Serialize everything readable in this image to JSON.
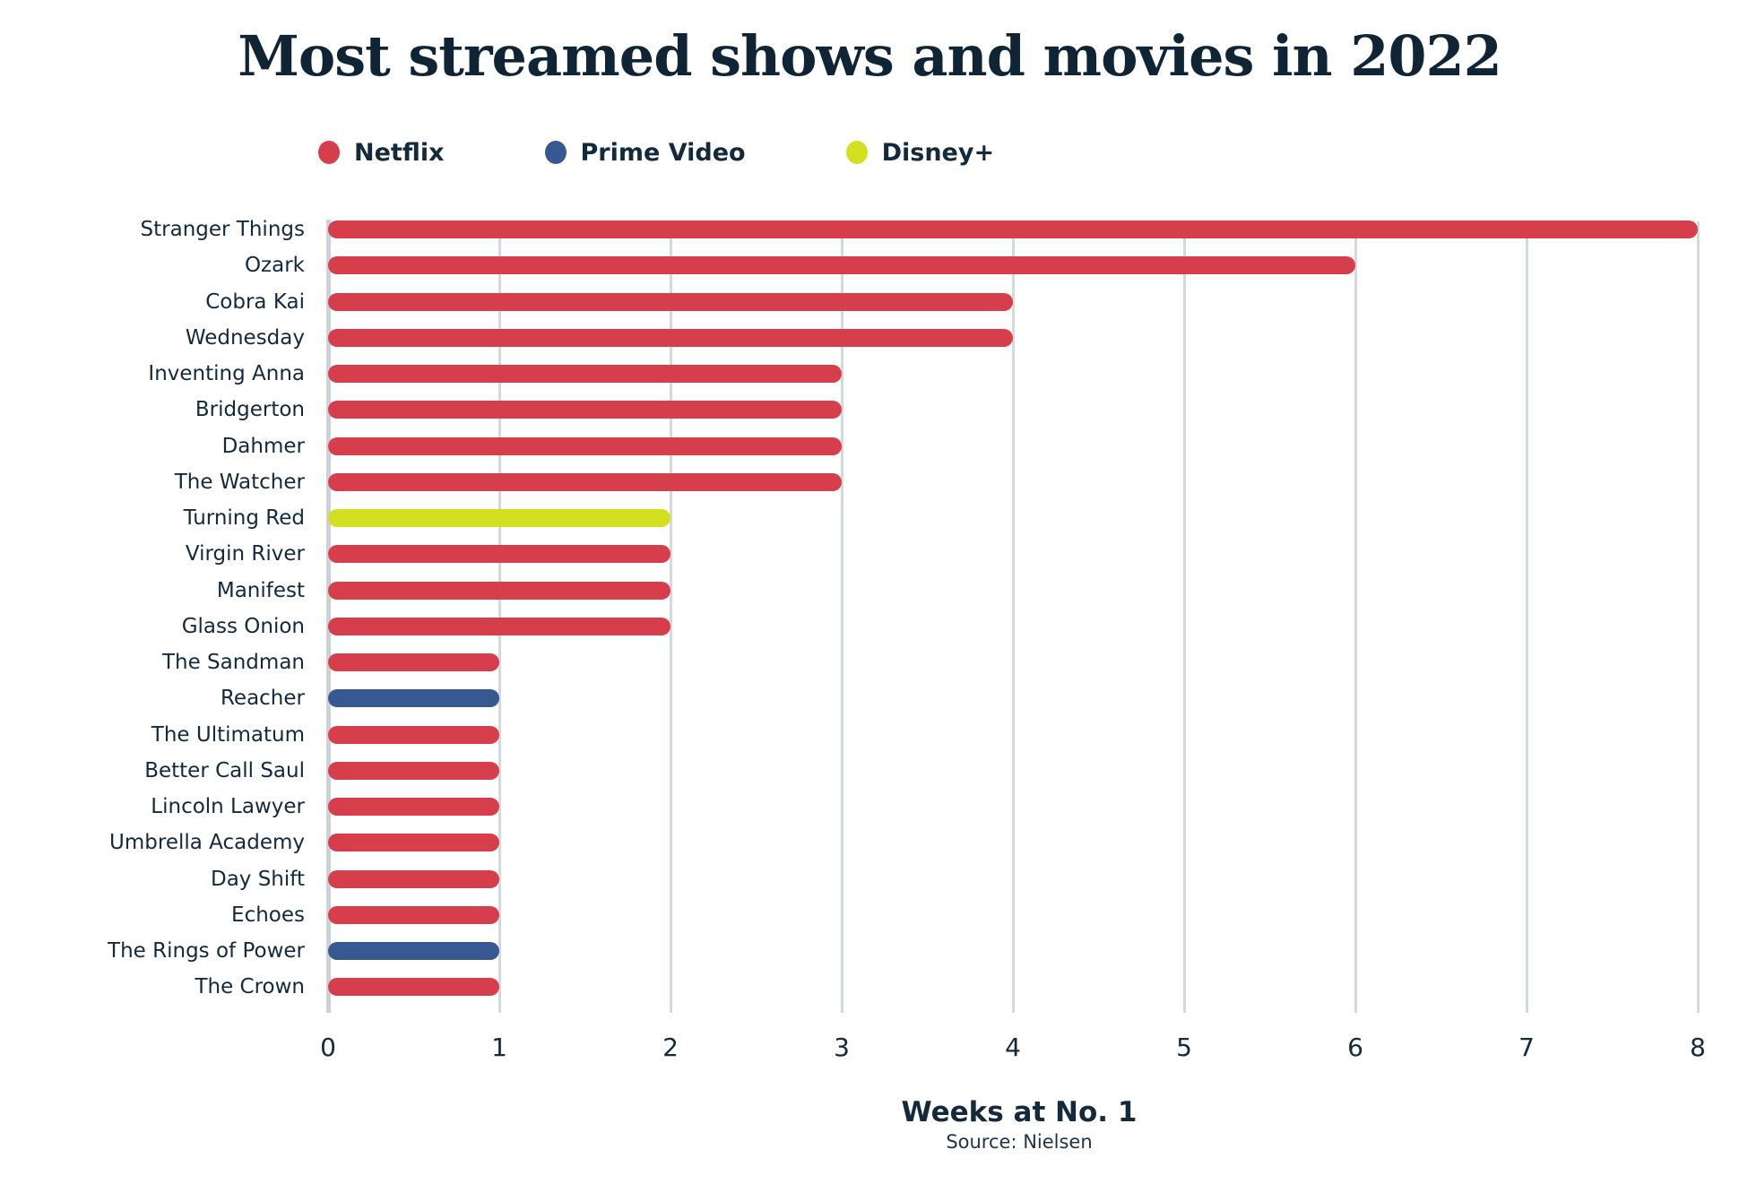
{
  "title": "Most streamed shows and movies in 2022",
  "legend": [
    {
      "label": "Netflix",
      "color": "#d63e4b"
    },
    {
      "label": "Prime Video",
      "color": "#385892"
    },
    {
      "label": "Disney+",
      "color": "#d4df20"
    }
  ],
  "chart_data": {
    "type": "bar",
    "orientation": "horizontal",
    "title": "Most streamed shows and movies in 2022",
    "xlabel": "Weeks at No. 1",
    "source": "Source: Nielsen",
    "xlim": [
      0,
      8
    ],
    "xticks": [
      0,
      1,
      2,
      3,
      4,
      5,
      6,
      7,
      8
    ],
    "grid": true,
    "legend_position": "top",
    "series_colors": {
      "Netflix": "#d63e4b",
      "Prime Video": "#385892",
      "Disney+": "#d4df20"
    },
    "bars": [
      {
        "label": "Stranger Things",
        "value": 8,
        "service": "Netflix"
      },
      {
        "label": "Ozark",
        "value": 6,
        "service": "Netflix"
      },
      {
        "label": "Cobra Kai",
        "value": 4,
        "service": "Netflix"
      },
      {
        "label": "Wednesday",
        "value": 4,
        "service": "Netflix"
      },
      {
        "label": "Inventing Anna",
        "value": 3,
        "service": "Netflix"
      },
      {
        "label": "Bridgerton",
        "value": 3,
        "service": "Netflix"
      },
      {
        "label": "Dahmer",
        "value": 3,
        "service": "Netflix"
      },
      {
        "label": "The Watcher",
        "value": 3,
        "service": "Netflix"
      },
      {
        "label": "Turning Red",
        "value": 2,
        "service": "Disney+"
      },
      {
        "label": "Virgin River",
        "value": 2,
        "service": "Netflix"
      },
      {
        "label": "Manifest",
        "value": 2,
        "service": "Netflix"
      },
      {
        "label": "Glass Onion",
        "value": 2,
        "service": "Netflix"
      },
      {
        "label": "The Sandman",
        "value": 1,
        "service": "Netflix"
      },
      {
        "label": "Reacher",
        "value": 1,
        "service": "Prime Video"
      },
      {
        "label": "The Ultimatum",
        "value": 1,
        "service": "Netflix"
      },
      {
        "label": "Better Call Saul",
        "value": 1,
        "service": "Netflix"
      },
      {
        "label": "Lincoln Lawyer",
        "value": 1,
        "service": "Netflix"
      },
      {
        "label": "Umbrella Academy",
        "value": 1,
        "service": "Netflix"
      },
      {
        "label": "Day Shift",
        "value": 1,
        "service": "Netflix"
      },
      {
        "label": "Echoes",
        "value": 1,
        "service": "Netflix"
      },
      {
        "label": "The Rings of Power",
        "value": 1,
        "service": "Prime Video"
      },
      {
        "label": "The Crown",
        "value": 1,
        "service": "Netflix"
      }
    ]
  }
}
